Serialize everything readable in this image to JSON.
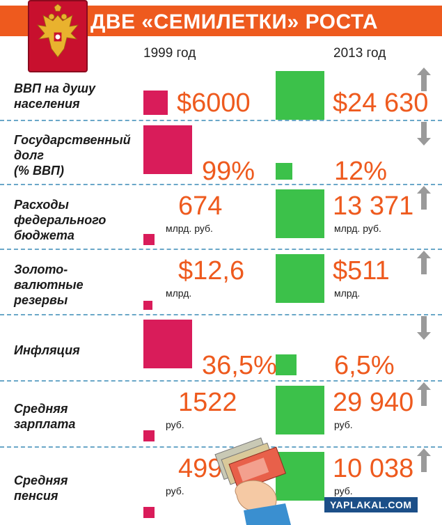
{
  "header": {
    "title": "ДВЕ «СЕМИЛЕТКИ» РОСТА"
  },
  "years": [
    "1999 год",
    "2013 год"
  ],
  "colors": {
    "header": "#ee5a1e",
    "value": "#ee5a1e",
    "y1999": "#d91c5a",
    "y2013": "#3cc14a",
    "arrow": "#9a9a9a",
    "divider": "#6aa7c8"
  },
  "icons": {
    "emblem": "coat-of-arms-icon",
    "up": "arrow-up-icon",
    "down": "arrow-down-icon",
    "money": "hand-with-banknotes-icon"
  },
  "watermark": "YAPLAKAL.COM",
  "chart_data": {
    "type": "table",
    "title": "ДВЕ «СЕМИЛЕТКИ» РОСТА",
    "columns": [
      "1999 год",
      "2013 год"
    ],
    "rows": [
      {
        "label": "ВВП на душу\nнаселения",
        "v1999": "$6000",
        "u1999": "",
        "v2013": "$24 630",
        "u2013": "",
        "trend": "up",
        "s1999": 6000,
        "s2013": 24630
      },
      {
        "label": "Государственный\nдолг\n(% ВВП)",
        "v1999": "99%",
        "u1999": "",
        "v2013": "12%",
        "u2013": "",
        "trend": "down",
        "s1999": 99,
        "s2013": 12
      },
      {
        "label": "Расходы\nфедерального\nбюджета",
        "v1999": "674",
        "u1999": "млрд. руб.",
        "v2013": "13 371",
        "u2013": "млрд. руб.",
        "trend": "up",
        "s1999": 674,
        "s2013": 13371
      },
      {
        "label": "Золото-\nвалютные\nрезервы",
        "v1999": "$12,6",
        "u1999": "млрд.",
        "v2013": "$511",
        "u2013": "млрд.",
        "trend": "up",
        "s1999": 12.6,
        "s2013": 511
      },
      {
        "label": "Инфляция",
        "v1999": "36,5%",
        "u1999": "",
        "v2013": "6,5%",
        "u2013": "",
        "trend": "down",
        "s1999": 36.5,
        "s2013": 6.5
      },
      {
        "label": "Средняя\nзарплата",
        "v1999": "1522",
        "u1999": "руб.",
        "v2013": "29 940",
        "u2013": "руб.",
        "trend": "up",
        "s1999": 1522,
        "s2013": 29940
      },
      {
        "label": "Средняя\nпенсия",
        "v1999": "499",
        "u1999": "руб.",
        "v2013": "10 038",
        "u2013": "руб.",
        "trend": "up",
        "s1999": 499,
        "s2013": 10038
      }
    ]
  }
}
